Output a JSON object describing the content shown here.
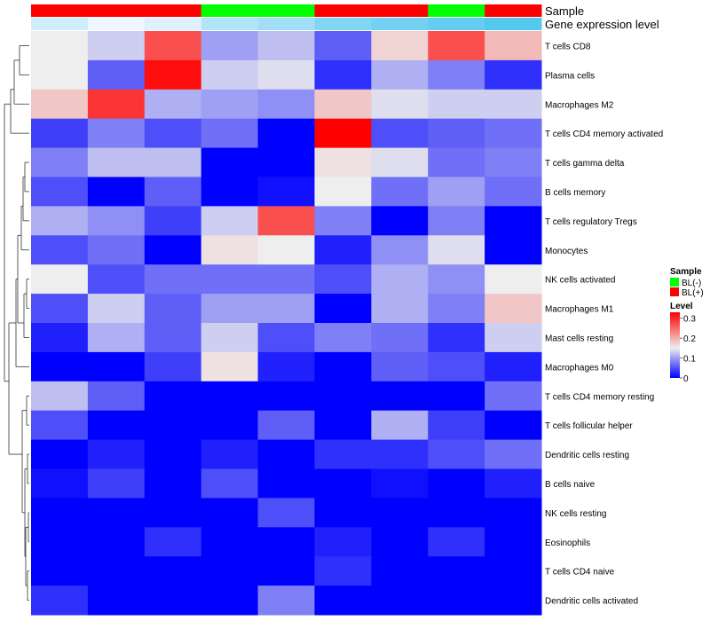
{
  "chart_data": {
    "type": "heatmap",
    "title": "",
    "annotation_labels": {
      "sample": "Sample",
      "expression": "Gene expression level"
    },
    "columns": [
      {
        "sample": "BL(+)",
        "expression_value": 0.12
      },
      {
        "sample": "BL(+)",
        "expression_value": 0.14
      },
      {
        "sample": "BL(+)",
        "expression_value": 0.13
      },
      {
        "sample": "BL(-)",
        "expression_value": 0.1
      },
      {
        "sample": "BL(-)",
        "expression_value": 0.09
      },
      {
        "sample": "BL(+)",
        "expression_value": 0.07
      },
      {
        "sample": "BL(+)",
        "expression_value": 0.06
      },
      {
        "sample": "BL(-)",
        "expression_value": 0.05
      },
      {
        "sample": "BL(+)",
        "expression_value": 0.04
      }
    ],
    "rows": [
      "T cells CD8",
      "Plasma cells",
      "Macrophages M2",
      "T cells CD4 memory activated",
      "T cells gamma delta",
      "B cells memory",
      "T cells regulatory  Tregs",
      "Monocytes",
      "NK cells activated",
      "Macrophages M1",
      "Mast cells resting",
      "Macrophages M0",
      "T cells CD4 memory resting",
      "T cells follicular helper",
      "Dendritic cells resting",
      "B cells naive",
      "NK cells resting",
      "Eosinophils",
      "T cells CD4 naive",
      "Dendritic cells activated"
    ],
    "values": [
      [
        0.15,
        0.13,
        0.27,
        0.1,
        0.12,
        0.06,
        0.17,
        0.27,
        0.19
      ],
      [
        0.15,
        0.06,
        0.32,
        0.13,
        0.14,
        0.03,
        0.11,
        0.08,
        0.03
      ],
      [
        0.18,
        0.29,
        0.11,
        0.1,
        0.09,
        0.18,
        0.14,
        0.13,
        0.13
      ],
      [
        0.04,
        0.08,
        0.05,
        0.07,
        0.0,
        0.33,
        0.05,
        0.06,
        0.07
      ],
      [
        0.08,
        0.12,
        0.12,
        0.0,
        0.0,
        0.16,
        0.14,
        0.07,
        0.08
      ],
      [
        0.05,
        0.0,
        0.06,
        0.0,
        0.01,
        0.15,
        0.07,
        0.1,
        0.07
      ],
      [
        0.11,
        0.09,
        0.04,
        0.13,
        0.27,
        0.08,
        0.0,
        0.08,
        0.0
      ],
      [
        0.05,
        0.07,
        0.0,
        0.16,
        0.15,
        0.02,
        0.09,
        0.14,
        0.0
      ],
      [
        0.15,
        0.05,
        0.07,
        0.07,
        0.07,
        0.05,
        0.11,
        0.09,
        0.15
      ],
      [
        0.05,
        0.13,
        0.06,
        0.1,
        0.1,
        0.0,
        0.11,
        0.08,
        0.18
      ],
      [
        0.02,
        0.11,
        0.06,
        0.13,
        0.05,
        0.08,
        0.07,
        0.03,
        0.13
      ],
      [
        0.0,
        0.0,
        0.04,
        0.16,
        0.02,
        0.0,
        0.06,
        0.05,
        0.02
      ],
      [
        0.12,
        0.06,
        0.0,
        0.0,
        0.0,
        0.0,
        0.0,
        0.0,
        0.07
      ],
      [
        0.05,
        0.0,
        0.0,
        0.0,
        0.06,
        0.0,
        0.11,
        0.04,
        0.0
      ],
      [
        0.0,
        0.02,
        0.0,
        0.02,
        0.0,
        0.03,
        0.03,
        0.05,
        0.07
      ],
      [
        0.01,
        0.04,
        0.0,
        0.05,
        0.0,
        0.0,
        0.01,
        0.0,
        0.02
      ],
      [
        0.0,
        0.0,
        0.0,
        0.0,
        0.05,
        0.0,
        0.0,
        0.0,
        0.0
      ],
      [
        0.0,
        0.0,
        0.03,
        0.0,
        0.0,
        0.02,
        0.0,
        0.03,
        0.0
      ],
      [
        0.0,
        0.0,
        0.0,
        0.0,
        0.0,
        0.03,
        0.0,
        0.0,
        0.0
      ],
      [
        0.03,
        0.0,
        0.0,
        0.0,
        0.08,
        0.0,
        0.0,
        0.0,
        0.0
      ]
    ],
    "color_scale": {
      "min": 0.0,
      "mid": 0.15,
      "max": 0.33,
      "low_color": "#0000FF",
      "mid_color": "#EEEEEE",
      "high_color": "#FF0000"
    },
    "legend": {
      "sample_title": "Sample",
      "sample_entries": [
        {
          "label": "BL(-)",
          "color": "#00FF00"
        },
        {
          "label": "BL(+)",
          "color": "#FF0000"
        }
      ],
      "level_title": "Level",
      "level_ticks": [
        {
          "label": "0.3",
          "value": 0.3
        },
        {
          "label": "0.2",
          "value": 0.2
        },
        {
          "label": "0.1",
          "value": 0.1
        },
        {
          "label": "0",
          "value": 0.0
        }
      ],
      "expression_low_color": "#EEF6FF",
      "expression_high_color": "#55C8EE",
      "expression_min": 0.04,
      "expression_max": 0.14
    },
    "dendrogram": "row dendrogram on left; rows clustered"
  }
}
